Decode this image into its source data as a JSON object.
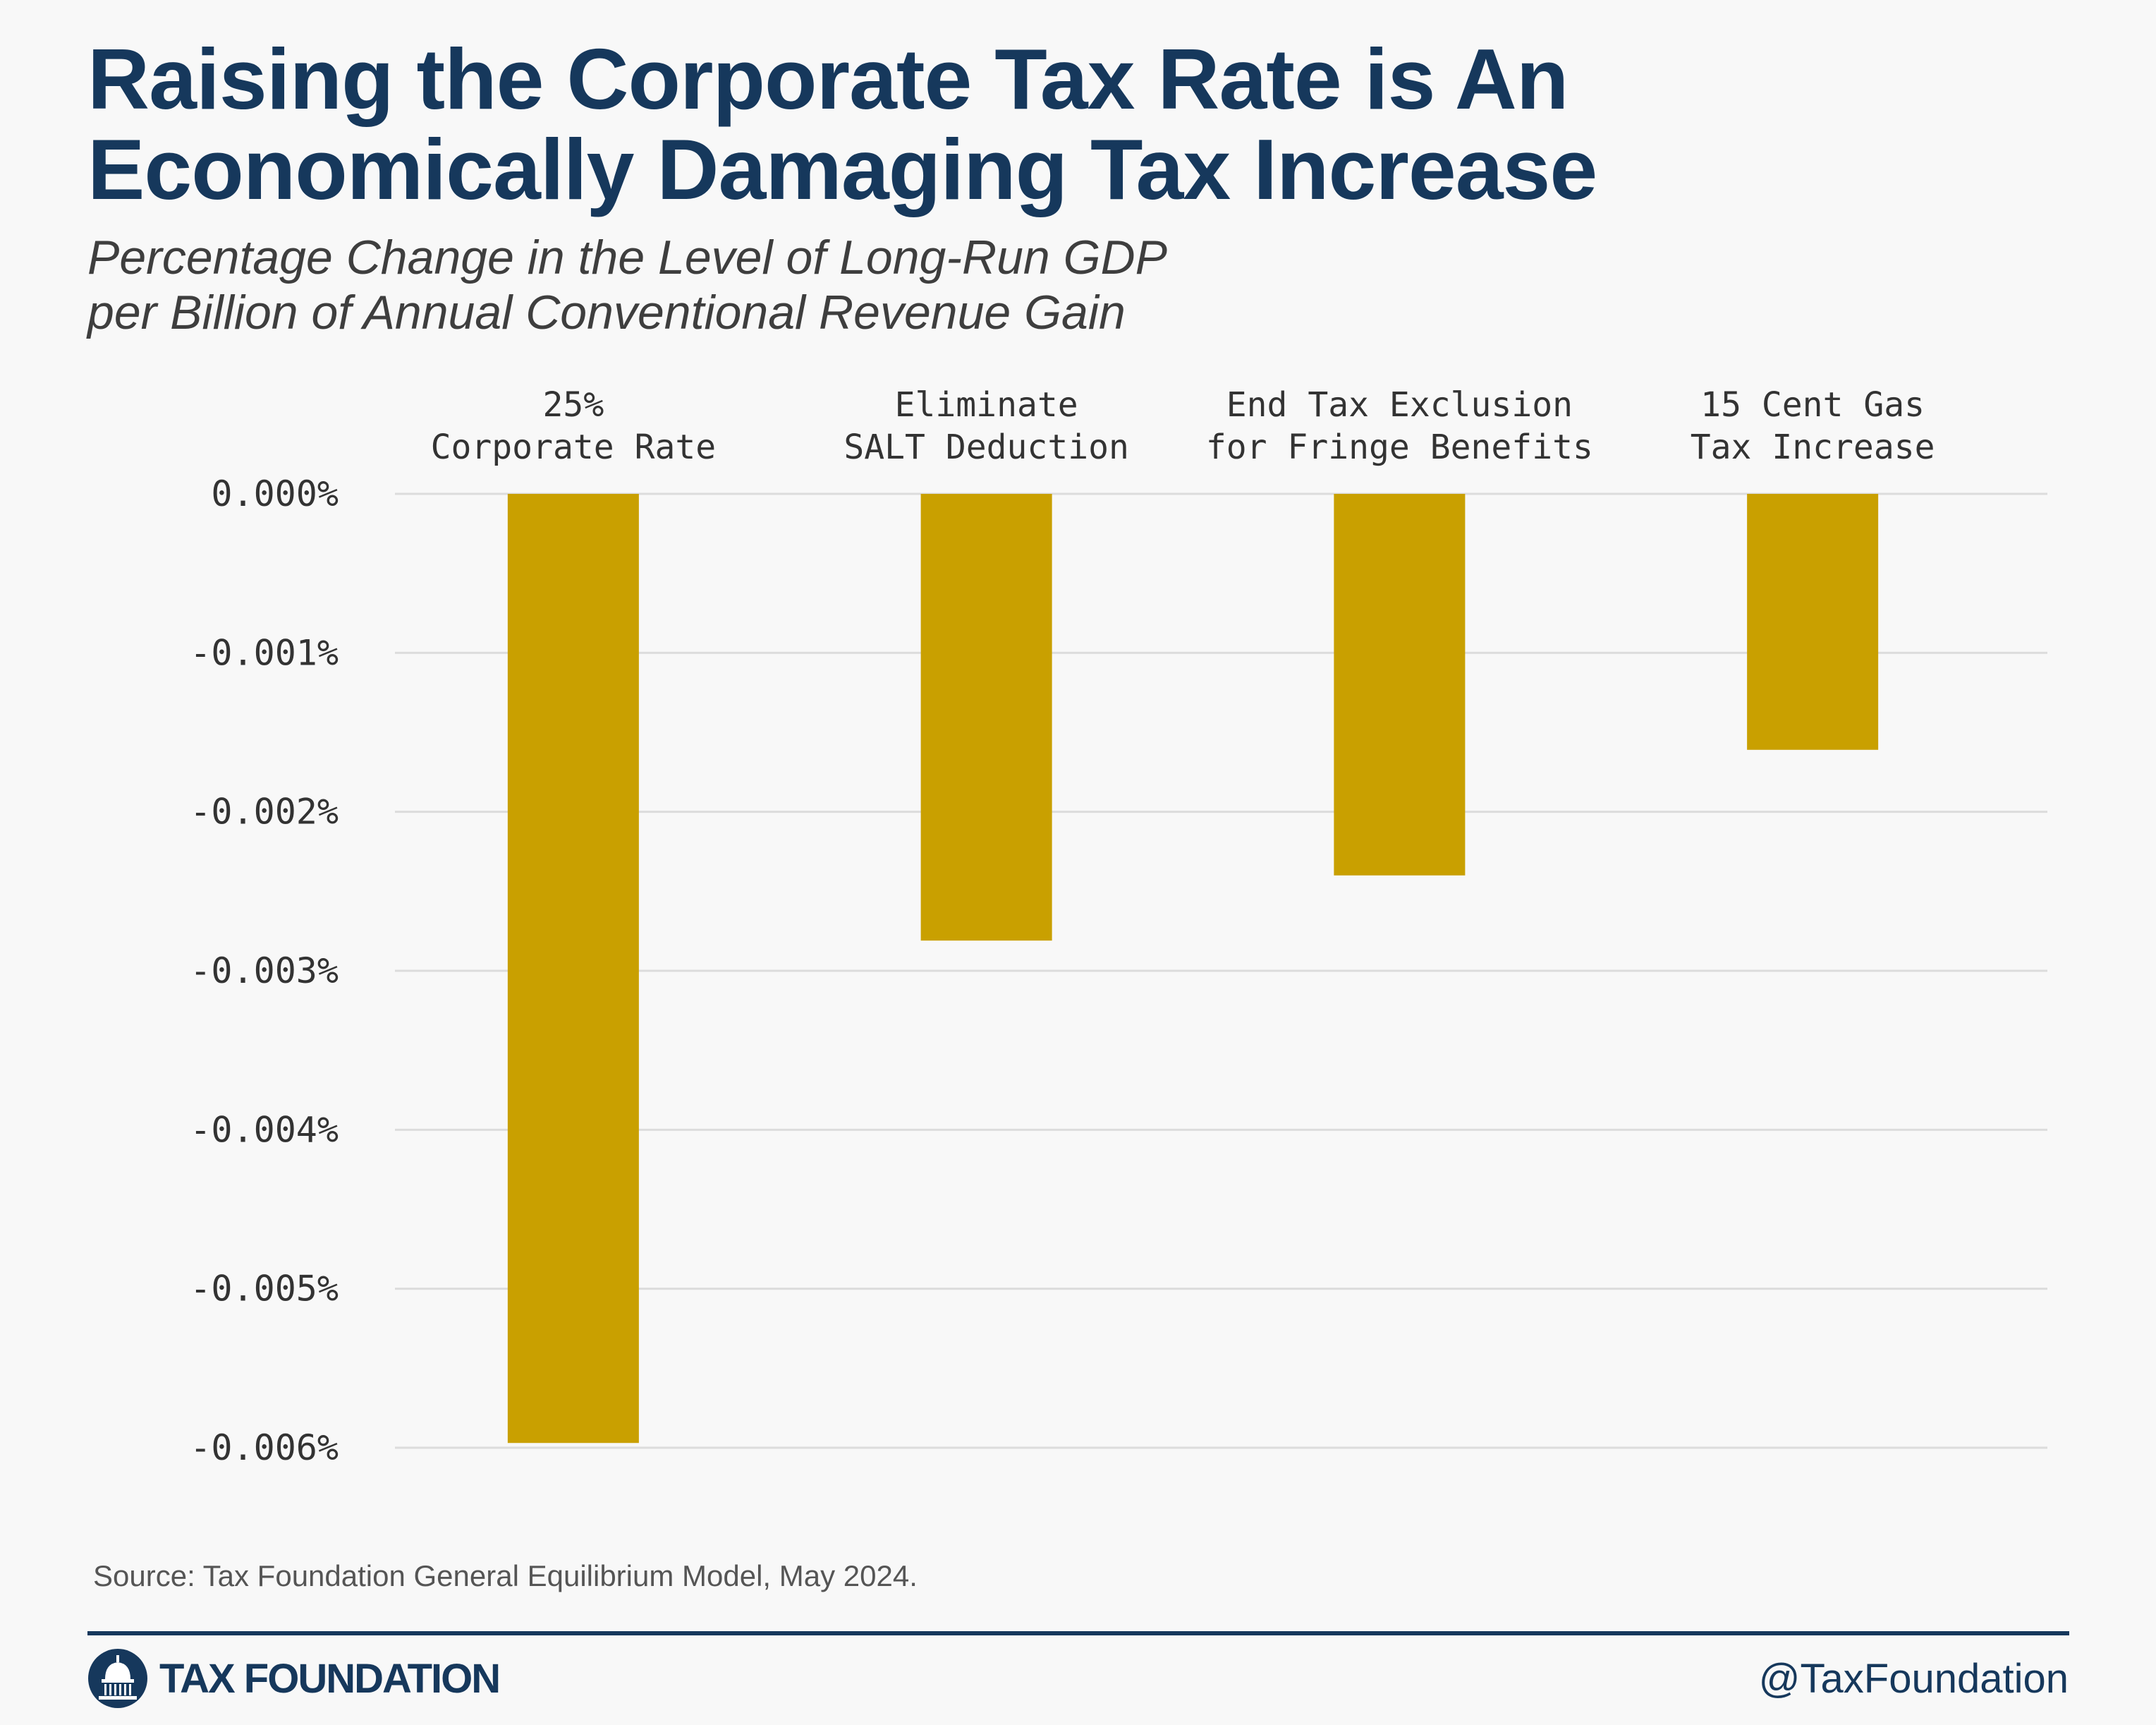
{
  "header": {
    "title": "Raising the Corporate Tax Rate is An Economically Damaging Tax Increase",
    "subtitle_line1": "Percentage Change in the Level of Long-Run GDP",
    "subtitle_line2": "per Billion of Annual Conventional Revenue Gain"
  },
  "chart_data": {
    "type": "bar",
    "categories": [
      [
        "25%",
        "Corporate Rate"
      ],
      [
        "Eliminate",
        "SALT Deduction"
      ],
      [
        "End Tax Exclusion",
        "for Fringe Benefits"
      ],
      [
        "15 Cent Gas",
        "Tax Increase"
      ]
    ],
    "values": [
      -0.00597,
      -0.00281,
      -0.0024,
      -0.00161
    ],
    "y_ticks": [
      "0.000%",
      "-0.001%",
      "-0.002%",
      "-0.003%",
      "-0.004%",
      "-0.005%",
      "-0.006%"
    ],
    "y_tick_values": [
      0,
      -0.001,
      -0.002,
      -0.003,
      -0.004,
      -0.005,
      -0.006
    ],
    "ylim": [
      -0.006,
      0
    ],
    "category_axis_position": "top",
    "grid": true,
    "legend": "none",
    "bar_color": "#c9a000",
    "grid_color": "#dcdcdc"
  },
  "footer": {
    "source": "Source: Tax Foundation General Equilibrium Model, May 2024.",
    "logo_text": "TAX FOUNDATION",
    "logo_icon": "capitol-dome-icon",
    "handle": "@TaxFoundation"
  }
}
